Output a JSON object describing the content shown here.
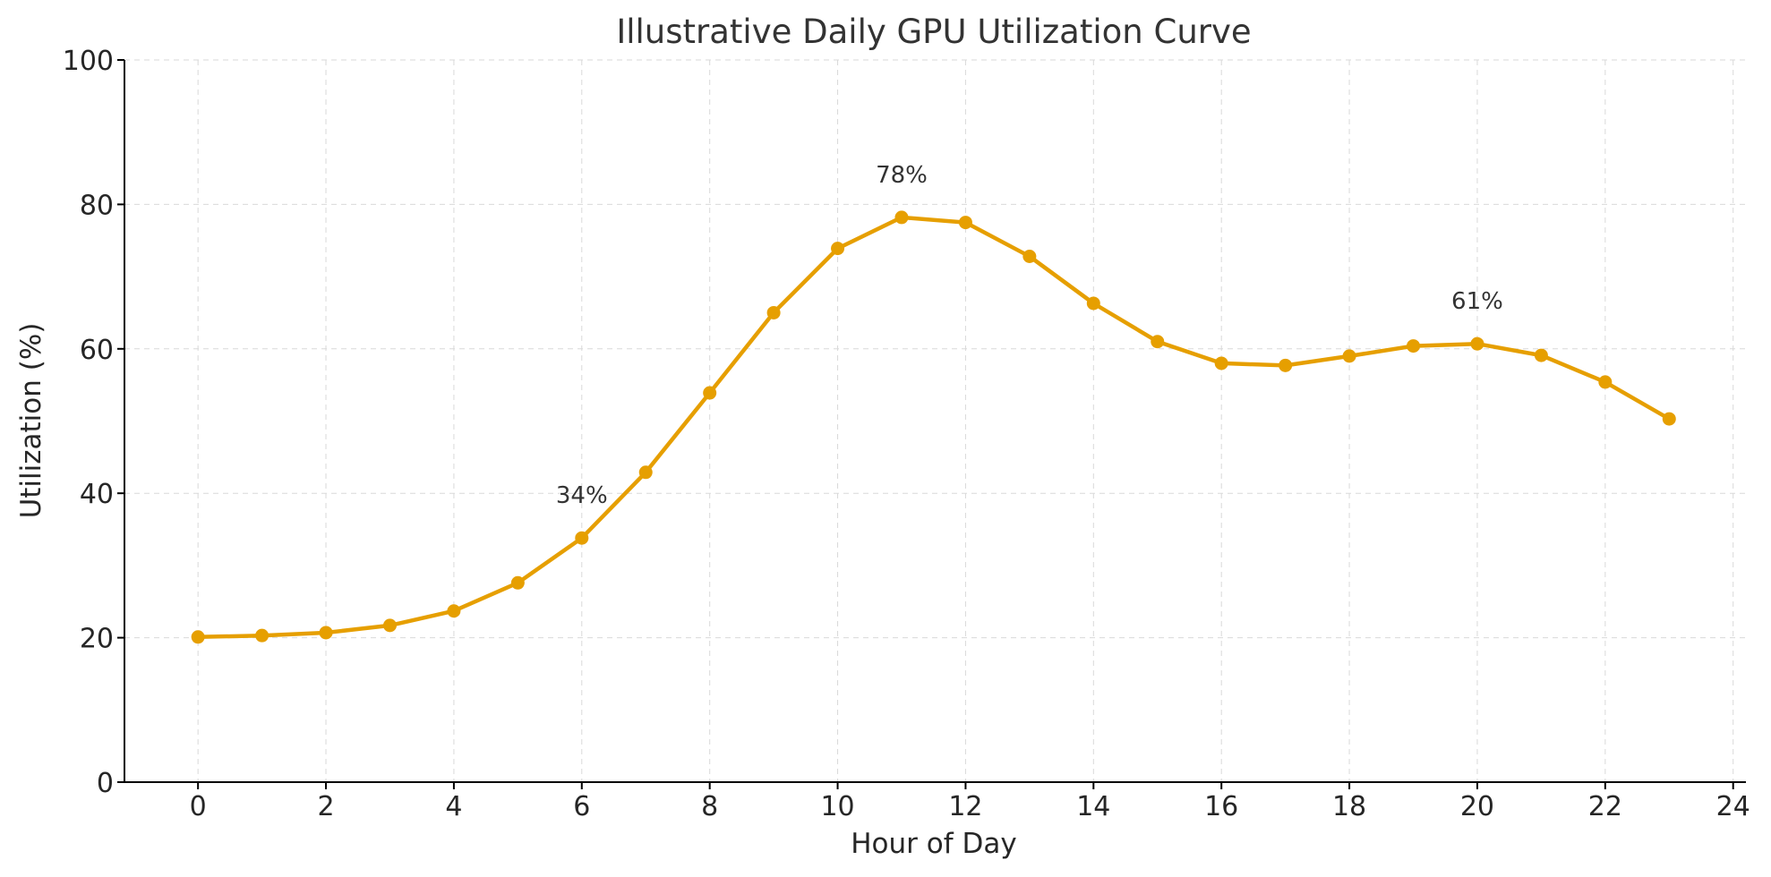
{
  "chart_data": {
    "type": "line",
    "title": "Illustrative Daily GPU Utilization Curve",
    "xlabel": "Hour of Day",
    "ylabel": "Utilization (%)",
    "xlim": [
      -1.15,
      24.2
    ],
    "ylim": [
      0,
      100
    ],
    "xticks": [
      0,
      2,
      4,
      6,
      8,
      10,
      12,
      14,
      16,
      18,
      20,
      22,
      24
    ],
    "yticks": [
      0,
      20,
      40,
      60,
      80,
      100
    ],
    "grid": true,
    "line_color": "#E69F00",
    "x": [
      0,
      1,
      2,
      3,
      4,
      5,
      6,
      7,
      8,
      9,
      10,
      11,
      12,
      13,
      14,
      15,
      16,
      17,
      18,
      19,
      20,
      21,
      22,
      23
    ],
    "values": [
      20.1,
      20.3,
      20.7,
      21.7,
      23.7,
      27.6,
      33.8,
      42.9,
      53.9,
      65.0,
      73.9,
      78.2,
      77.5,
      72.8,
      66.3,
      61.0,
      58.0,
      57.7,
      59.0,
      60.4,
      60.7,
      59.1,
      55.4,
      50.3
    ],
    "annotations": [
      {
        "x": 6,
        "y": 33.8,
        "text": "34%"
      },
      {
        "x": 11,
        "y": 78.2,
        "text": "78%"
      },
      {
        "x": 20,
        "y": 60.7,
        "text": "61%"
      }
    ]
  }
}
